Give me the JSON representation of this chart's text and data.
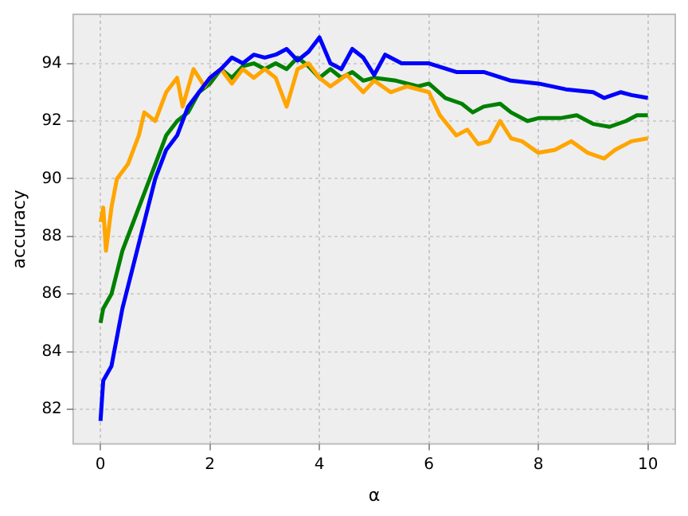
{
  "chart_data": {
    "type": "line",
    "xlabel": "α",
    "ylabel": "accuracy",
    "xlim": [
      -0.5,
      10.5
    ],
    "ylim": [
      80.8,
      95.7
    ],
    "xticks": [
      0,
      2,
      4,
      6,
      8,
      10
    ],
    "yticks": [
      82,
      84,
      86,
      88,
      90,
      92,
      94
    ],
    "grid": true,
    "legend": false,
    "marker": "none",
    "series": [
      {
        "color": "#0000ff",
        "x": [
          0,
          0.05,
          0.2,
          0.4,
          0.6,
          0.8,
          1.0,
          1.2,
          1.4,
          1.6,
          1.8,
          2.0,
          2.2,
          2.4,
          2.6,
          2.8,
          3.0,
          3.2,
          3.4,
          3.6,
          3.8,
          4.0,
          4.2,
          4.4,
          4.6,
          4.8,
          5.0,
          5.2,
          5.5,
          6.0,
          6.5,
          7.0,
          7.5,
          8.0,
          8.5,
          9.0,
          9.2,
          9.5,
          9.7,
          10
        ],
        "values": [
          81.6,
          83,
          83.5,
          85.5,
          87,
          88.5,
          90,
          91,
          91.5,
          92.5,
          93,
          93.5,
          93.8,
          94.2,
          94,
          94.3,
          94.2,
          94.3,
          94.5,
          94.1,
          94.4,
          94.9,
          94,
          93.8,
          94.5,
          94.2,
          93.6,
          94.3,
          94,
          94,
          93.7,
          93.7,
          93.4,
          93.3,
          93.1,
          93,
          92.8,
          93,
          92.9,
          92.8
        ]
      },
      {
        "color": "#ffa500",
        "x": [
          0,
          0.05,
          0.1,
          0.2,
          0.3,
          0.5,
          0.7,
          0.8,
          1.0,
          1.2,
          1.4,
          1.5,
          1.7,
          1.9,
          2.0,
          2.2,
          2.4,
          2.6,
          2.8,
          3.0,
          3.2,
          3.4,
          3.6,
          3.8,
          4.0,
          4.2,
          4.5,
          4.8,
          5.0,
          5.3,
          5.6,
          6.0,
          6.2,
          6.5,
          6.7,
          6.9,
          7.1,
          7.3,
          7.5,
          7.7,
          8.0,
          8.3,
          8.6,
          8.9,
          9.2,
          9.4,
          9.7,
          10
        ],
        "values": [
          88.5,
          89,
          87.5,
          89,
          90,
          90.5,
          91.5,
          92.3,
          92,
          93,
          93.5,
          92.5,
          93.8,
          93.2,
          93.5,
          93.8,
          93.3,
          93.8,
          93.5,
          93.8,
          93.5,
          92.5,
          93.8,
          94,
          93.5,
          93.2,
          93.6,
          93,
          93.4,
          93,
          93.2,
          93,
          92.2,
          91.5,
          91.7,
          91.2,
          91.3,
          92,
          91.4,
          91.3,
          90.9,
          91,
          91.3,
          90.9,
          90.7,
          91,
          91.3,
          91.4
        ]
      },
      {
        "color": "#008000",
        "x": [
          0,
          0.05,
          0.2,
          0.4,
          0.6,
          0.8,
          1.0,
          1.2,
          1.4,
          1.6,
          1.8,
          2.0,
          2.2,
          2.4,
          2.6,
          2.8,
          3.0,
          3.2,
          3.4,
          3.6,
          3.8,
          4.0,
          4.2,
          4.4,
          4.6,
          4.8,
          5.0,
          5.4,
          5.8,
          6.0,
          6.3,
          6.6,
          6.8,
          7.0,
          7.3,
          7.5,
          7.8,
          8.0,
          8.4,
          8.7,
          9.0,
          9.3,
          9.6,
          9.8,
          10
        ],
        "values": [
          85,
          85.5,
          86,
          87.5,
          88.5,
          89.5,
          90.5,
          91.5,
          92,
          92.3,
          93,
          93.3,
          93.8,
          93.5,
          93.9,
          94,
          93.8,
          94,
          93.8,
          94.2,
          93.9,
          93.5,
          93.8,
          93.5,
          93.7,
          93.4,
          93.5,
          93.4,
          93.2,
          93.3,
          92.8,
          92.6,
          92.3,
          92.5,
          92.6,
          92.3,
          92,
          92.1,
          92.1,
          92.2,
          91.9,
          91.8,
          92,
          92.2,
          92.2
        ]
      }
    ]
  }
}
